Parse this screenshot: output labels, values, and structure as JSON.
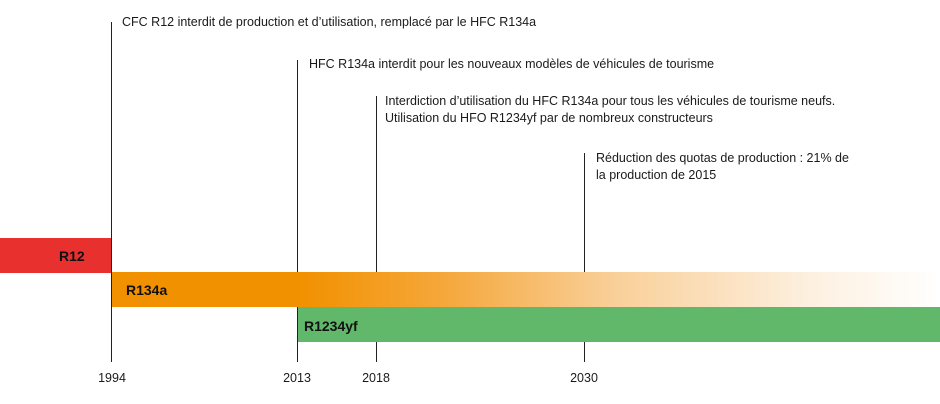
{
  "events": [
    {
      "year": "1994",
      "text": [
        "CFC R12 interdit de production et d’utilisation, remplacé par le HFC R134a"
      ]
    },
    {
      "year": "2013",
      "text": [
        "HFC R134a interdit pour les nouveaux modèles de véhicules de tourisme"
      ]
    },
    {
      "year": "2018",
      "text": [
        "Interdiction d’utilisation du HFC R134a pour tous les véhicules de tourisme neufs.",
        "Utilisation du HFO R1234yf par de nombreux constructeurs"
      ]
    },
    {
      "year": "2030",
      "text": [
        "Réduction des quotas de production : 21% de",
        "la production de 2015"
      ]
    }
  ],
  "bars": [
    {
      "label": "R12",
      "color": "#e8312f"
    },
    {
      "label": "R134a",
      "color": "#f29100"
    },
    {
      "label": "R1234yf",
      "color": "#62b86a"
    }
  ]
}
